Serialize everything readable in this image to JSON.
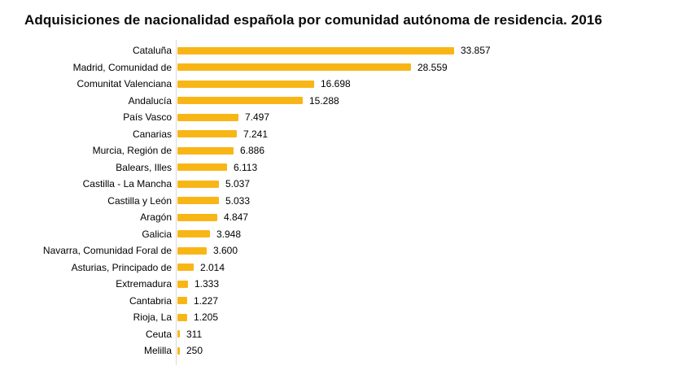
{
  "chart_data": {
    "type": "bar",
    "orientation": "horizontal",
    "title": "Adquisiciones de nacionalidad española por comunidad autónoma de residencia. 2016",
    "categories": [
      "Cataluña",
      "Madrid, Comunidad de",
      "Comunitat Valenciana",
      "Andalucía",
      "País Vasco",
      "Canarias",
      "Murcia, Región de",
      "Balears, Illes",
      "Castilla - La Mancha",
      "Castilla y León",
      "Aragón",
      "Galicia",
      "Navarra, Comunidad Foral de",
      "Asturias, Principado de",
      "Extremadura",
      "Cantabria",
      "Rioja, La",
      "Ceuta",
      "Melilla"
    ],
    "values": [
      33857,
      28559,
      16698,
      15288,
      7497,
      7241,
      6886,
      6113,
      5037,
      5033,
      4847,
      3948,
      3600,
      2014,
      1333,
      1227,
      1205,
      311,
      250
    ],
    "value_labels": [
      "33.857",
      "28.559",
      "16.698",
      "15.288",
      "7.497",
      "7.241",
      "6.886",
      "6.113",
      "5.037",
      "5.033",
      "4.847",
      "3.948",
      "3.600",
      "2.014",
      "1.333",
      "1.227",
      "1.205",
      "311",
      "250"
    ],
    "xlim": [
      0,
      34000
    ],
    "grid": "off",
    "legend": "none",
    "bar_color": "#F8B616",
    "axis_line_color": "#D9D9D9",
    "text_color": "#000000"
  }
}
